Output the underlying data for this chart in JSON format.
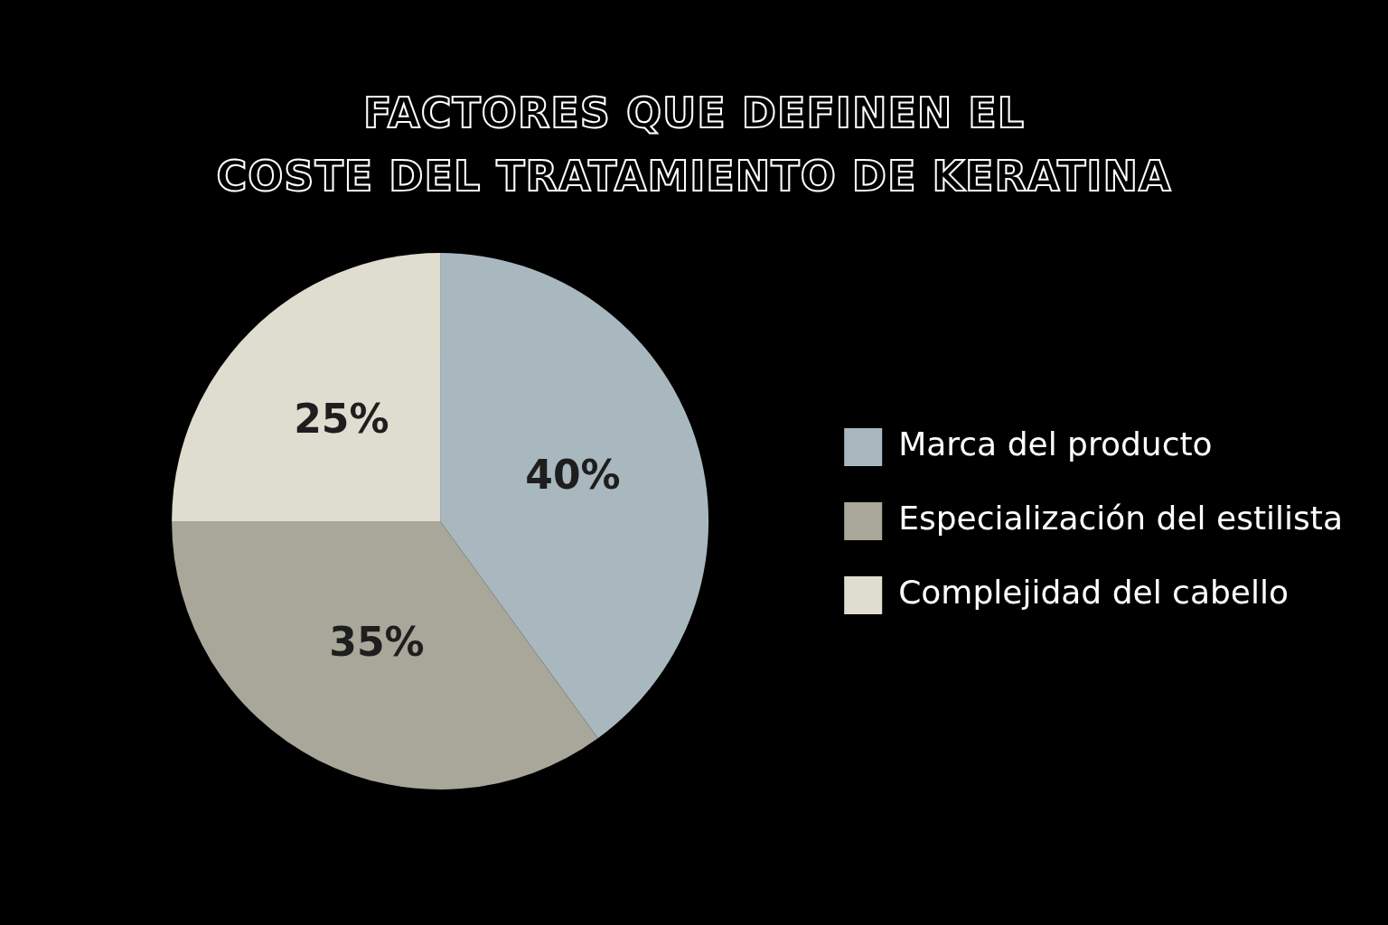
{
  "chart_data": {
    "type": "pie",
    "title": "FACTORES QUE DEFINEN EL\nCOSTE DEL TRATAMIENTO DE KERATINA",
    "categories": [
      "Marca del producto",
      "Especialización del estilista",
      "Complejidad del cabello"
    ],
    "values": [
      40,
      35,
      25
    ],
    "colors": [
      "#a9b8bf",
      "#a8a799",
      "#dfddd0"
    ],
    "value_labels": [
      "40%",
      "35%",
      "25%"
    ],
    "legend": "right"
  }
}
